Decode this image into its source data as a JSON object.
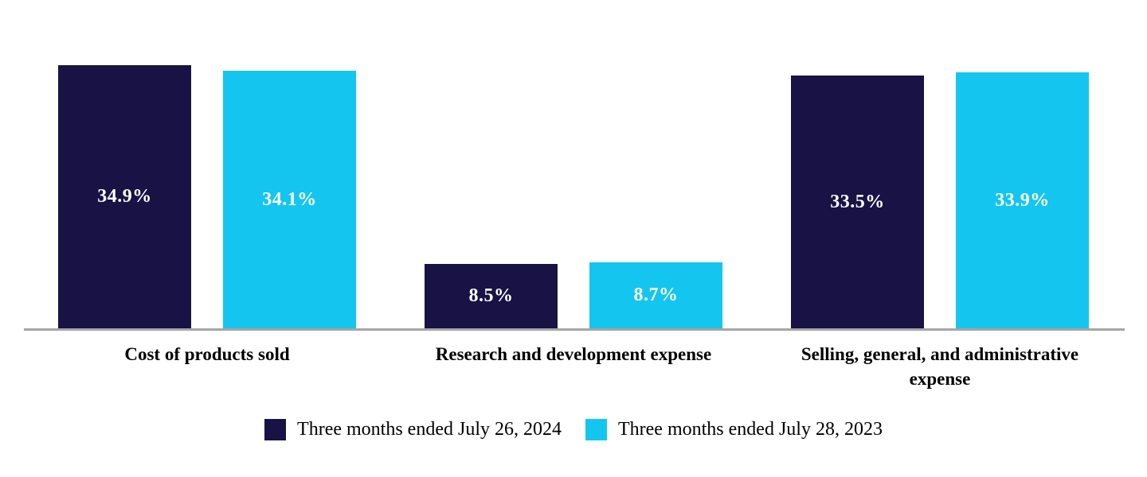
{
  "chart_data": {
    "type": "bar",
    "title": "",
    "xlabel": "",
    "ylabel": "",
    "categories": [
      "Cost of products sold",
      "Research and development expense",
      "Selling, general, and administrative expense"
    ],
    "series": [
      {
        "name": "Three months ended July 26, 2024",
        "color": "#181245",
        "values": [
          34.9,
          8.5,
          33.5
        ],
        "data_labels": [
          "34.9%",
          "8.5%",
          "33.5%"
        ]
      },
      {
        "name": "Three months ended July 28, 2023",
        "color": "#14C6EF",
        "values": [
          34.1,
          8.7,
          33.9
        ],
        "data_labels": [
          "34.1%",
          "8.7%",
          "33.9%"
        ]
      }
    ],
    "ylim": [
      0,
      43.5
    ],
    "grid": false,
    "legend_position": "bottom",
    "value_label_color": "#FFFFFF",
    "category_label_color": "#000000",
    "axis_line_color": "#A6A6A6",
    "background_color": "#FFFFFF"
  }
}
